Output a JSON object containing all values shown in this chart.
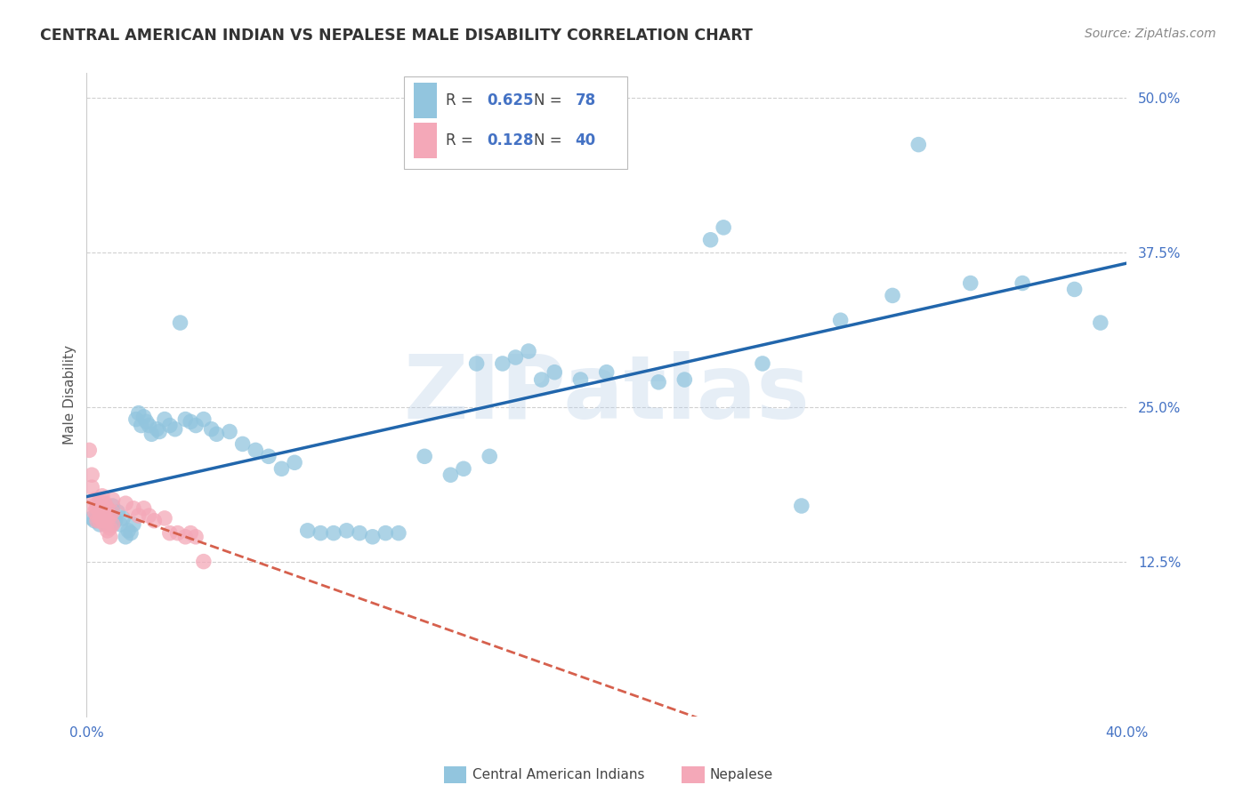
{
  "title": "CENTRAL AMERICAN INDIAN VS NEPALESE MALE DISABILITY CORRELATION CHART",
  "source": "Source: ZipAtlas.com",
  "ylabel_text": "Male Disability",
  "watermark": "ZIPatlas",
  "xlim": [
    0.0,
    0.4
  ],
  "ylim": [
    0.0,
    0.52
  ],
  "xticks": [
    0.0,
    0.1,
    0.2,
    0.3,
    0.4
  ],
  "xticklabels": [
    "0.0%",
    "",
    "",
    "",
    "40.0%"
  ],
  "yticks": [
    0.125,
    0.25,
    0.375,
    0.5
  ],
  "yticklabels": [
    "12.5%",
    "25.0%",
    "37.5%",
    "50.0%"
  ],
  "blue_color": "#92c5de",
  "pink_color": "#f4a8b8",
  "blue_line_color": "#2166ac",
  "pink_line_color": "#d6604d",
  "R_blue": 0.625,
  "N_blue": 78,
  "R_pink": 0.128,
  "N_pink": 40,
  "legend_label_blue": "Central American Indians",
  "legend_label_pink": "Nepalese",
  "title_color": "#333333",
  "axis_label_color": "#555555",
  "tick_color": "#4472c4",
  "grid_color": "#d0d0d0",
  "background_color": "#ffffff",
  "blue_scatter": [
    [
      0.002,
      0.16
    ],
    [
      0.003,
      0.158
    ],
    [
      0.004,
      0.162
    ],
    [
      0.005,
      0.155
    ],
    [
      0.005,
      0.17
    ],
    [
      0.006,
      0.165
    ],
    [
      0.007,
      0.16
    ],
    [
      0.008,
      0.158
    ],
    [
      0.008,
      0.168
    ],
    [
      0.009,
      0.155
    ],
    [
      0.01,
      0.162
    ],
    [
      0.01,
      0.17
    ],
    [
      0.011,
      0.158
    ],
    [
      0.012,
      0.165
    ],
    [
      0.013,
      0.155
    ],
    [
      0.014,
      0.16
    ],
    [
      0.015,
      0.145
    ],
    [
      0.016,
      0.15
    ],
    [
      0.017,
      0.148
    ],
    [
      0.018,
      0.155
    ],
    [
      0.019,
      0.24
    ],
    [
      0.02,
      0.245
    ],
    [
      0.021,
      0.235
    ],
    [
      0.022,
      0.242
    ],
    [
      0.023,
      0.238
    ],
    [
      0.024,
      0.235
    ],
    [
      0.025,
      0.228
    ],
    [
      0.027,
      0.232
    ],
    [
      0.028,
      0.23
    ],
    [
      0.03,
      0.24
    ],
    [
      0.032,
      0.235
    ],
    [
      0.034,
      0.232
    ],
    [
      0.036,
      0.318
    ],
    [
      0.038,
      0.24
    ],
    [
      0.04,
      0.238
    ],
    [
      0.042,
      0.235
    ],
    [
      0.045,
      0.24
    ],
    [
      0.048,
      0.232
    ],
    [
      0.05,
      0.228
    ],
    [
      0.055,
      0.23
    ],
    [
      0.06,
      0.22
    ],
    [
      0.065,
      0.215
    ],
    [
      0.07,
      0.21
    ],
    [
      0.075,
      0.2
    ],
    [
      0.08,
      0.205
    ],
    [
      0.085,
      0.15
    ],
    [
      0.09,
      0.148
    ],
    [
      0.095,
      0.148
    ],
    [
      0.1,
      0.15
    ],
    [
      0.105,
      0.148
    ],
    [
      0.11,
      0.145
    ],
    [
      0.115,
      0.148
    ],
    [
      0.12,
      0.148
    ],
    [
      0.13,
      0.21
    ],
    [
      0.14,
      0.195
    ],
    [
      0.145,
      0.2
    ],
    [
      0.15,
      0.285
    ],
    [
      0.155,
      0.21
    ],
    [
      0.16,
      0.285
    ],
    [
      0.165,
      0.29
    ],
    [
      0.17,
      0.295
    ],
    [
      0.175,
      0.272
    ],
    [
      0.18,
      0.278
    ],
    [
      0.19,
      0.272
    ],
    [
      0.2,
      0.278
    ],
    [
      0.22,
      0.27
    ],
    [
      0.23,
      0.272
    ],
    [
      0.24,
      0.385
    ],
    [
      0.245,
      0.395
    ],
    [
      0.26,
      0.285
    ],
    [
      0.275,
      0.17
    ],
    [
      0.29,
      0.32
    ],
    [
      0.31,
      0.34
    ],
    [
      0.32,
      0.462
    ],
    [
      0.34,
      0.35
    ],
    [
      0.36,
      0.35
    ],
    [
      0.38,
      0.345
    ],
    [
      0.39,
      0.318
    ]
  ],
  "pink_scatter": [
    [
      0.001,
      0.215
    ],
    [
      0.002,
      0.195
    ],
    [
      0.002,
      0.185
    ],
    [
      0.003,
      0.175
    ],
    [
      0.003,
      0.17
    ],
    [
      0.003,
      0.165
    ],
    [
      0.004,
      0.168
    ],
    [
      0.004,
      0.162
    ],
    [
      0.004,
      0.158
    ],
    [
      0.005,
      0.175
    ],
    [
      0.005,
      0.165
    ],
    [
      0.005,
      0.158
    ],
    [
      0.006,
      0.178
    ],
    [
      0.006,
      0.168
    ],
    [
      0.006,
      0.158
    ],
    [
      0.007,
      0.172
    ],
    [
      0.007,
      0.162
    ],
    [
      0.007,
      0.155
    ],
    [
      0.008,
      0.168
    ],
    [
      0.008,
      0.158
    ],
    [
      0.008,
      0.15
    ],
    [
      0.009,
      0.162
    ],
    [
      0.009,
      0.152
    ],
    [
      0.009,
      0.145
    ],
    [
      0.01,
      0.175
    ],
    [
      0.01,
      0.165
    ],
    [
      0.01,
      0.155
    ],
    [
      0.015,
      0.172
    ],
    [
      0.018,
      0.168
    ],
    [
      0.02,
      0.162
    ],
    [
      0.022,
      0.168
    ],
    [
      0.024,
      0.162
    ],
    [
      0.026,
      0.158
    ],
    [
      0.03,
      0.16
    ],
    [
      0.032,
      0.148
    ],
    [
      0.035,
      0.148
    ],
    [
      0.038,
      0.145
    ],
    [
      0.04,
      0.148
    ],
    [
      0.042,
      0.145
    ],
    [
      0.045,
      0.125
    ]
  ]
}
